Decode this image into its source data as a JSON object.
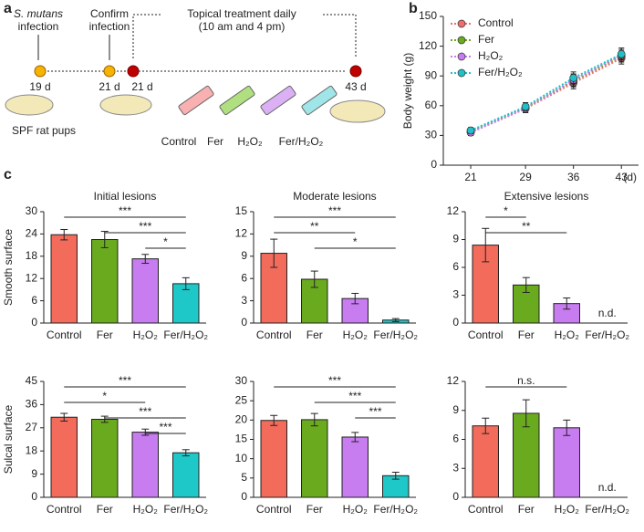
{
  "panels": [
    "a",
    "b",
    "c"
  ],
  "diagram": {
    "infection": {
      "organism": "S. mutans",
      "text": "infection"
    },
    "confirm": [
      "Confirm",
      "infection"
    ],
    "treatment": [
      "Topical treatment daily",
      "(10 am and 4 pm)"
    ],
    "days": [
      "19 d",
      "21 d",
      "21 d",
      "43 d"
    ],
    "animals": "SPF rat pups",
    "groups": [
      "Control",
      "Fer",
      "H₂O₂",
      "Fer/H₂O₂"
    ]
  },
  "chart_data": [
    {
      "type": "line",
      "ylabel": "Body weight (g)",
      "xlabel": "(d)",
      "x": [
        21,
        29,
        36,
        43
      ],
      "xlim": [
        17,
        45.5
      ],
      "xticks": [
        21,
        29,
        36,
        43
      ],
      "ylim": [
        0,
        150
      ],
      "yticks": [
        0,
        30,
        60,
        90,
        120,
        150
      ],
      "legend": "top-left",
      "series": [
        {
          "name": "Control",
          "color": "#f26b6b",
          "values": [
            33,
            57,
            83,
            108
          ],
          "errors": [
            3,
            4,
            6,
            6
          ]
        },
        {
          "name": "Fer",
          "color": "#6aaa1e",
          "values": [
            34,
            58,
            85,
            110
          ],
          "errors": [
            3,
            5,
            6,
            6
          ]
        },
        {
          "name": "H₂O₂",
          "color": "#c77cf0",
          "values": [
            33,
            57,
            86,
            111
          ],
          "errors": [
            3,
            4,
            6,
            7
          ]
        },
        {
          "name": "Fer/H₂O₂",
          "color": "#1fc0c8",
          "values": [
            35,
            59,
            88,
            112
          ],
          "errors": [
            3,
            4,
            6,
            6
          ]
        }
      ]
    },
    {
      "type": "bar",
      "title": "Initial lesions",
      "ylabel": "Smooth surface",
      "categories": [
        "Control",
        "Fer",
        "H₂O₂",
        "Fer/H₂O₂"
      ],
      "colors": [
        "#f26b5b",
        "#6aaa1e",
        "#c77cf0",
        "#1fc8c8"
      ],
      "values": [
        23.8,
        22.5,
        17.3,
        10.6
      ],
      "errors": [
        1.4,
        2.2,
        1.2,
        1.6
      ],
      "ylim": [
        0,
        30
      ],
      "yticks": [
        0,
        6,
        12,
        18,
        24,
        30
      ],
      "brackets": [
        {
          "groups": [
            "Control",
            "Fer/H₂O₂"
          ],
          "label": "***"
        },
        {
          "groups": [
            "Fer",
            "Fer/H₂O₂"
          ],
          "label": "***"
        },
        {
          "groups": [
            "H₂O₂",
            "Fer/H₂O₂"
          ],
          "label": "*"
        }
      ]
    },
    {
      "type": "bar",
      "title": "Moderate lesions",
      "categories": [
        "Control",
        "Fer",
        "H₂O₂",
        "Fer/H₂O₂"
      ],
      "colors": [
        "#f26b5b",
        "#6aaa1e",
        "#c77cf0",
        "#1fc8c8"
      ],
      "values": [
        9.4,
        5.9,
        3.3,
        0.4
      ],
      "errors": [
        1.9,
        1.1,
        0.7,
        0.2
      ],
      "ylim": [
        0,
        15
      ],
      "yticks": [
        0,
        3,
        6,
        9,
        12,
        15
      ],
      "brackets": [
        {
          "groups": [
            "Control",
            "Fer/H₂O₂"
          ],
          "label": "***"
        },
        {
          "groups": [
            "Control",
            "H₂O₂"
          ],
          "label": "**"
        },
        {
          "groups": [
            "Fer",
            "Fer/H₂O₂"
          ],
          "label": "*"
        }
      ]
    },
    {
      "type": "bar",
      "title": "Extensive lesions",
      "note": "n.d.",
      "categories": [
        "Control",
        "Fer",
        "H₂O₂",
        "Fer/H₂O₂"
      ],
      "colors": [
        "#f26b5b",
        "#6aaa1e",
        "#c77cf0",
        "#1fc8c8"
      ],
      "values": [
        8.4,
        4.1,
        2.1,
        null
      ],
      "errors": [
        1.8,
        0.8,
        0.6,
        null
      ],
      "ylim": [
        0,
        12
      ],
      "yticks": [
        0,
        3,
        6,
        9,
        12
      ],
      "brackets": [
        {
          "groups": [
            "Control",
            "Fer"
          ],
          "label": "*"
        },
        {
          "groups": [
            "Control",
            "H₂O₂"
          ],
          "label": "**"
        }
      ]
    },
    {
      "type": "bar",
      "ylabel": "Sulcal surface",
      "categories": [
        "Control",
        "Fer",
        "H₂O₂",
        "Fer/H₂O₂"
      ],
      "colors": [
        "#f26b5b",
        "#6aaa1e",
        "#c77cf0",
        "#1fc8c8"
      ],
      "values": [
        31.1,
        30.3,
        25.3,
        17.3
      ],
      "errors": [
        1.5,
        1.2,
        1.2,
        1.2
      ],
      "ylim": [
        0,
        45
      ],
      "yticks": [
        0,
        9,
        18,
        27,
        36,
        45
      ],
      "brackets": [
        {
          "groups": [
            "Control",
            "Fer/H₂O₂"
          ],
          "label": "***"
        },
        {
          "groups": [
            "Control",
            "H₂O₂"
          ],
          "label": "*"
        },
        {
          "groups": [
            "Fer",
            "Fer/H₂O₂"
          ],
          "label": "***"
        },
        {
          "groups": [
            "H₂O₂",
            "Fer/H₂O₂"
          ],
          "label": "***"
        }
      ]
    },
    {
      "type": "bar",
      "categories": [
        "Control",
        "Fer",
        "H₂O₂",
        "Fer/H₂O₂"
      ],
      "colors": [
        "#f26b5b",
        "#6aaa1e",
        "#c77cf0",
        "#1fc8c8"
      ],
      "values": [
        19.9,
        20.1,
        15.6,
        5.6
      ],
      "errors": [
        1.3,
        1.6,
        1.2,
        0.9
      ],
      "ylim": [
        0,
        30
      ],
      "yticks": [
        0,
        5,
        10,
        15,
        20,
        25,
        30
      ],
      "brackets": [
        {
          "groups": [
            "Control",
            "Fer/H₂O₂"
          ],
          "label": "***"
        },
        {
          "groups": [
            "Fer",
            "Fer/H₂O₂"
          ],
          "label": "***"
        },
        {
          "groups": [
            "H₂O₂",
            "Fer/H₂O₂"
          ],
          "label": "***"
        }
      ]
    },
    {
      "type": "bar",
      "note": "n.d.",
      "categories": [
        "Control",
        "Fer",
        "H₂O₂",
        "Fer/H₂O₂"
      ],
      "colors": [
        "#f26b5b",
        "#6aaa1e",
        "#c77cf0",
        "#1fc8c8"
      ],
      "values": [
        7.4,
        8.7,
        7.2,
        null
      ],
      "errors": [
        0.8,
        1.4,
        0.8,
        null
      ],
      "ylim": [
        0,
        12
      ],
      "yticks": [
        0,
        3,
        6,
        9,
        12
      ],
      "brackets": [
        {
          "groups": [
            "Control",
            "H₂O₂"
          ],
          "label": "n.s."
        }
      ]
    }
  ]
}
